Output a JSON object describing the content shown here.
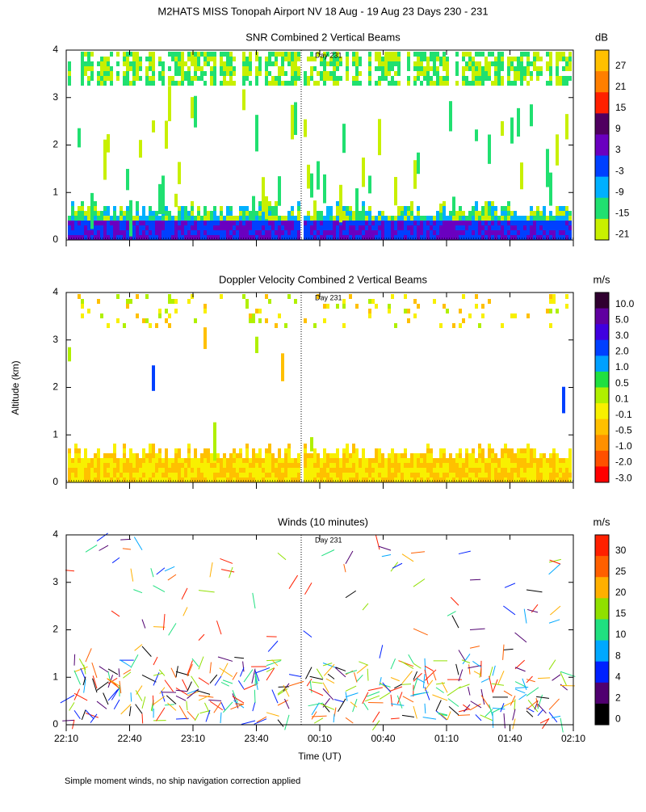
{
  "title": "M2HATS MISS Tonopah Airport NV  18 Aug - 19 Aug 23 Days 230 - 231",
  "y_axis_label": "Altitude (km)",
  "x_axis_label": "Time (UT)",
  "x_ticks": [
    "22:10",
    "22:40",
    "23:10",
    "23:40",
    "00:10",
    "00:40",
    "01:10",
    "01:40",
    "02:10"
  ],
  "footnote": "Simple moment winds, no ship navigation correction applied",
  "panels": [
    {
      "title": "SNR Combined 2 Vertical Beams",
      "unit": "dB",
      "annotation": "Day 231",
      "y_ticks": [
        0,
        1,
        2,
        3,
        4
      ],
      "colorbar": {
        "labels": [
          "27",
          "21",
          "15",
          "9",
          "3",
          "-3",
          "-9",
          "-15",
          "-21"
        ],
        "colors": [
          "#ffc000",
          "#ff7f00",
          "#ff2000",
          "#500060",
          "#6a00c0",
          "#0040ff",
          "#00b0ff",
          "#20e070",
          "#c8f000"
        ]
      }
    },
    {
      "title": "Doppler Velocity Combined 2 Vertical Beams",
      "unit": "m/s",
      "annotation": "Day 231",
      "y_ticks": [
        0,
        1,
        2,
        3,
        4
      ],
      "colorbar": {
        "labels": [
          "10.0",
          "5.0",
          "3.0",
          "2.0",
          "1.0",
          "0.5",
          "0.1",
          "-0.1",
          "-0.5",
          "-1.0",
          "-2.0",
          "-3.0"
        ],
        "colors": [
          "#300030",
          "#6000a0",
          "#4000e0",
          "#0040ff",
          "#00a0ff",
          "#20e040",
          "#b0f000",
          "#f8f000",
          "#ffc000",
          "#ff9000",
          "#ff5000",
          "#ff0000"
        ]
      }
    },
    {
      "title": "Winds (10 minutes)",
      "unit": "m/s",
      "annotation": "Day 231",
      "y_ticks": [
        0,
        1,
        2,
        3,
        4
      ],
      "colorbar": {
        "labels": [
          "30",
          "25",
          "20",
          "15",
          "10",
          "8",
          "4",
          "2",
          "0"
        ],
        "colors": [
          "#ff2000",
          "#ff6000",
          "#ffb000",
          "#90e000",
          "#20e080",
          "#00a8ff",
          "#0020ff",
          "#500070",
          "#000000"
        ]
      }
    }
  ]
}
